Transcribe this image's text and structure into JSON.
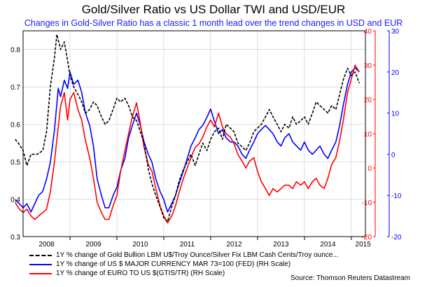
{
  "chart_data": {
    "type": "line",
    "title": "Gold/Silver Ratio vs US Dollar TWI and USD/EUR",
    "subtitle": "Changes in Gold-Silver Ratio has a classic 1 month lead over the trend changes in USD and EUR",
    "source": "Source: Thomson Reuters Datastream",
    "x_ticks": [
      "2008",
      "2009",
      "2010",
      "2011",
      "2012",
      "2013",
      "2014",
      "2015"
    ],
    "x_range": [
      2008.0,
      2015.3
    ],
    "y_left": {
      "range": [
        0.3,
        0.85
      ],
      "ticks": [
        "0.3",
        "0.4",
        "0.5",
        "0.6",
        "0.7",
        "0.8"
      ]
    },
    "y_right1": {
      "range": [
        -20,
        40
      ],
      "ticks": [
        "-20",
        "-10",
        "0",
        "10",
        "20",
        "30",
        "40"
      ],
      "color": "#ff0000"
    },
    "y_right2": {
      "range": [
        -20,
        30
      ],
      "ticks": [
        "-20",
        "-10",
        "0",
        "10",
        "20",
        "30"
      ],
      "color": "#0000ff"
    },
    "grid": true,
    "series": [
      {
        "name": "1Y % change of Gold Bullion LBM U$/Troy Ounce/Silver Fix LBM Cash Cents/Troy ounce...",
        "axis": "left",
        "color": "#000000",
        "dash": true,
        "points": [
          [
            2007.83,
            0.56
          ],
          [
            2007.9,
            0.55
          ],
          [
            2008.0,
            0.53
          ],
          [
            2008.08,
            0.49
          ],
          [
            2008.17,
            0.52
          ],
          [
            2008.3,
            0.52
          ],
          [
            2008.42,
            0.53
          ],
          [
            2008.5,
            0.58
          ],
          [
            2008.58,
            0.7
          ],
          [
            2008.67,
            0.78
          ],
          [
            2008.72,
            0.84
          ],
          [
            2008.8,
            0.8
          ],
          [
            2008.88,
            0.82
          ],
          [
            2008.95,
            0.77
          ],
          [
            2009.0,
            0.73
          ],
          [
            2009.08,
            0.7
          ],
          [
            2009.17,
            0.68
          ],
          [
            2009.25,
            0.66
          ],
          [
            2009.33,
            0.63
          ],
          [
            2009.42,
            0.64
          ],
          [
            2009.5,
            0.66
          ],
          [
            2009.58,
            0.65
          ],
          [
            2009.67,
            0.62
          ],
          [
            2009.75,
            0.6
          ],
          [
            2009.83,
            0.61
          ],
          [
            2009.92,
            0.64
          ],
          [
            2010.0,
            0.67
          ],
          [
            2010.08,
            0.66
          ],
          [
            2010.17,
            0.67
          ],
          [
            2010.25,
            0.65
          ],
          [
            2010.33,
            0.62
          ],
          [
            2010.42,
            0.61
          ],
          [
            2010.5,
            0.58
          ],
          [
            2010.58,
            0.55
          ],
          [
            2010.67,
            0.48
          ],
          [
            2010.75,
            0.44
          ],
          [
            2010.83,
            0.41
          ],
          [
            2010.92,
            0.38
          ],
          [
            2011.0,
            0.35
          ],
          [
            2011.08,
            0.34
          ],
          [
            2011.17,
            0.38
          ],
          [
            2011.25,
            0.41
          ],
          [
            2011.33,
            0.45
          ],
          [
            2011.42,
            0.48
          ],
          [
            2011.5,
            0.5
          ],
          [
            2011.58,
            0.52
          ],
          [
            2011.67,
            0.49
          ],
          [
            2011.75,
            0.52
          ],
          [
            2011.83,
            0.55
          ],
          [
            2011.92,
            0.53
          ],
          [
            2012.0,
            0.56
          ],
          [
            2012.08,
            0.58
          ],
          [
            2012.17,
            0.59
          ],
          [
            2012.25,
            0.56
          ],
          [
            2012.33,
            0.6
          ],
          [
            2012.42,
            0.59
          ],
          [
            2012.5,
            0.58
          ],
          [
            2012.58,
            0.55
          ],
          [
            2012.67,
            0.54
          ],
          [
            2012.75,
            0.53
          ],
          [
            2012.83,
            0.55
          ],
          [
            2012.92,
            0.58
          ],
          [
            2013.0,
            0.59
          ],
          [
            2013.08,
            0.6
          ],
          [
            2013.17,
            0.62
          ],
          [
            2013.25,
            0.64
          ],
          [
            2013.33,
            0.62
          ],
          [
            2013.42,
            0.6
          ],
          [
            2013.5,
            0.58
          ],
          [
            2013.58,
            0.6
          ],
          [
            2013.67,
            0.59
          ],
          [
            2013.75,
            0.62
          ],
          [
            2013.83,
            0.6
          ],
          [
            2013.92,
            0.61
          ],
          [
            2014.0,
            0.62
          ],
          [
            2014.08,
            0.6
          ],
          [
            2014.17,
            0.63
          ],
          [
            2014.25,
            0.66
          ],
          [
            2014.33,
            0.65
          ],
          [
            2014.42,
            0.64
          ],
          [
            2014.5,
            0.63
          ],
          [
            2014.58,
            0.65
          ],
          [
            2014.67,
            0.64
          ],
          [
            2014.75,
            0.68
          ],
          [
            2014.83,
            0.72
          ],
          [
            2014.92,
            0.75
          ],
          [
            2015.0,
            0.73
          ],
          [
            2015.08,
            0.74
          ],
          [
            2015.17,
            0.71
          ]
        ]
      },
      {
        "name": "1Y % change of US $ MAJOR CURRENCY MAR 73=100 (FED) (RH Scale)",
        "axis": "right2",
        "color": "#0000ff",
        "dash": false,
        "points": [
          [
            2007.83,
            -11
          ],
          [
            2007.92,
            -12
          ],
          [
            2008.0,
            -13
          ],
          [
            2008.08,
            -12
          ],
          [
            2008.17,
            -14
          ],
          [
            2008.25,
            -12
          ],
          [
            2008.33,
            -10
          ],
          [
            2008.42,
            -9
          ],
          [
            2008.5,
            -6
          ],
          [
            2008.58,
            -2
          ],
          [
            2008.67,
            6
          ],
          [
            2008.75,
            16
          ],
          [
            2008.8,
            14
          ],
          [
            2008.88,
            18
          ],
          [
            2008.95,
            16
          ],
          [
            2009.0,
            20
          ],
          [
            2009.08,
            17
          ],
          [
            2009.17,
            18
          ],
          [
            2009.25,
            15
          ],
          [
            2009.33,
            10
          ],
          [
            2009.42,
            7
          ],
          [
            2009.5,
            2
          ],
          [
            2009.58,
            -6
          ],
          [
            2009.67,
            -10
          ],
          [
            2009.75,
            -13
          ],
          [
            2009.83,
            -13
          ],
          [
            2009.92,
            -10
          ],
          [
            2010.0,
            -8
          ],
          [
            2010.08,
            -4
          ],
          [
            2010.17,
            -1
          ],
          [
            2010.25,
            4
          ],
          [
            2010.33,
            7
          ],
          [
            2010.42,
            10
          ],
          [
            2010.5,
            7
          ],
          [
            2010.58,
            3
          ],
          [
            2010.67,
            0
          ],
          [
            2010.75,
            -2
          ],
          [
            2010.83,
            -6
          ],
          [
            2010.92,
            -9
          ],
          [
            2011.0,
            -11
          ],
          [
            2011.08,
            -14
          ],
          [
            2011.17,
            -12
          ],
          [
            2011.25,
            -10
          ],
          [
            2011.33,
            -7
          ],
          [
            2011.42,
            -4
          ],
          [
            2011.5,
            -1
          ],
          [
            2011.58,
            2
          ],
          [
            2011.67,
            4
          ],
          [
            2011.75,
            6
          ],
          [
            2011.83,
            7
          ],
          [
            2011.92,
            9
          ],
          [
            2012.0,
            11
          ],
          [
            2012.08,
            8
          ],
          [
            2012.17,
            5
          ],
          [
            2012.25,
            6
          ],
          [
            2012.33,
            4
          ],
          [
            2012.42,
            3
          ],
          [
            2012.5,
            3
          ],
          [
            2012.58,
            2
          ],
          [
            2012.67,
            0
          ],
          [
            2012.75,
            -1
          ],
          [
            2012.83,
            1
          ],
          [
            2012.92,
            3
          ],
          [
            2013.0,
            5
          ],
          [
            2013.08,
            6
          ],
          [
            2013.17,
            7
          ],
          [
            2013.25,
            6
          ],
          [
            2013.33,
            5
          ],
          [
            2013.42,
            3
          ],
          [
            2013.5,
            2
          ],
          [
            2013.58,
            4
          ],
          [
            2013.67,
            5
          ],
          [
            2013.75,
            3
          ],
          [
            2013.83,
            2
          ],
          [
            2013.92,
            1
          ],
          [
            2014.0,
            3
          ],
          [
            2014.08,
            1
          ],
          [
            2014.17,
            0
          ],
          [
            2014.25,
            1
          ],
          [
            2014.33,
            2
          ],
          [
            2014.42,
            0
          ],
          [
            2014.5,
            -1
          ],
          [
            2014.58,
            1
          ],
          [
            2014.67,
            3
          ],
          [
            2014.75,
            7
          ],
          [
            2014.83,
            12
          ],
          [
            2014.92,
            17
          ],
          [
            2015.0,
            20
          ],
          [
            2015.08,
            21
          ],
          [
            2015.17,
            20
          ]
        ]
      },
      {
        "name": "1Y % change of EURO TO US $(GTIS/TR) (RH Scale)",
        "axis": "right1",
        "color": "#ff0000",
        "dash": false,
        "points": [
          [
            2007.83,
            -10
          ],
          [
            2007.92,
            -12
          ],
          [
            2008.0,
            -13
          ],
          [
            2008.08,
            -12
          ],
          [
            2008.17,
            -14
          ],
          [
            2008.25,
            -15
          ],
          [
            2008.33,
            -14
          ],
          [
            2008.42,
            -13
          ],
          [
            2008.5,
            -12
          ],
          [
            2008.58,
            -7
          ],
          [
            2008.67,
            2
          ],
          [
            2008.75,
            12
          ],
          [
            2008.8,
            18
          ],
          [
            2008.88,
            22
          ],
          [
            2008.95,
            14
          ],
          [
            2009.0,
            20
          ],
          [
            2009.08,
            22
          ],
          [
            2009.17,
            17
          ],
          [
            2009.25,
            14
          ],
          [
            2009.33,
            8
          ],
          [
            2009.42,
            3
          ],
          [
            2009.5,
            -3
          ],
          [
            2009.58,
            -10
          ],
          [
            2009.67,
            -13
          ],
          [
            2009.75,
            -15
          ],
          [
            2009.83,
            -15
          ],
          [
            2009.92,
            -11
          ],
          [
            2010.0,
            -8
          ],
          [
            2010.08,
            -1
          ],
          [
            2010.17,
            5
          ],
          [
            2010.25,
            10
          ],
          [
            2010.33,
            15
          ],
          [
            2010.42,
            19
          ],
          [
            2010.5,
            13
          ],
          [
            2010.58,
            6
          ],
          [
            2010.67,
            1
          ],
          [
            2010.75,
            -1
          ],
          [
            2010.83,
            -6
          ],
          [
            2010.92,
            -11
          ],
          [
            2011.0,
            -14
          ],
          [
            2011.08,
            -16
          ],
          [
            2011.17,
            -14
          ],
          [
            2011.25,
            -11
          ],
          [
            2011.33,
            -7
          ],
          [
            2011.42,
            -3
          ],
          [
            2011.5,
            0
          ],
          [
            2011.58,
            3
          ],
          [
            2011.67,
            6
          ],
          [
            2011.75,
            7
          ],
          [
            2011.83,
            9
          ],
          [
            2011.92,
            12
          ],
          [
            2012.0,
            14
          ],
          [
            2012.08,
            12
          ],
          [
            2012.17,
            16
          ],
          [
            2012.25,
            12
          ],
          [
            2012.33,
            10
          ],
          [
            2012.42,
            9
          ],
          [
            2012.5,
            7
          ],
          [
            2012.58,
            4
          ],
          [
            2012.67,
            2
          ],
          [
            2012.75,
            0
          ],
          [
            2012.83,
            2
          ],
          [
            2012.92,
            3
          ],
          [
            2013.0,
            -1
          ],
          [
            2013.08,
            -4
          ],
          [
            2013.17,
            -6
          ],
          [
            2013.25,
            -8
          ],
          [
            2013.33,
            -6
          ],
          [
            2013.42,
            -7
          ],
          [
            2013.5,
            -6
          ],
          [
            2013.58,
            -5
          ],
          [
            2013.67,
            -5
          ],
          [
            2013.75,
            -6
          ],
          [
            2013.83,
            -4
          ],
          [
            2013.92,
            -5
          ],
          [
            2014.0,
            -4
          ],
          [
            2014.08,
            -6
          ],
          [
            2014.17,
            -4
          ],
          [
            2014.25,
            -3
          ],
          [
            2014.33,
            -5
          ],
          [
            2014.42,
            -6
          ],
          [
            2014.5,
            -3
          ],
          [
            2014.58,
            1
          ],
          [
            2014.67,
            3
          ],
          [
            2014.75,
            8
          ],
          [
            2014.83,
            14
          ],
          [
            2014.92,
            22
          ],
          [
            2015.0,
            26
          ],
          [
            2015.08,
            30
          ],
          [
            2015.17,
            28
          ]
        ]
      }
    ]
  }
}
